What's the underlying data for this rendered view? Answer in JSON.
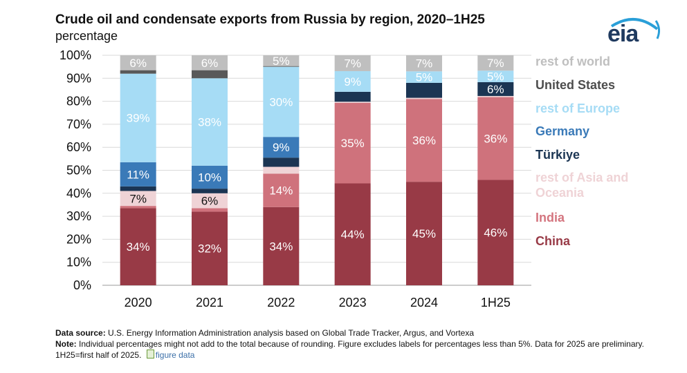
{
  "title": "Crude oil and condensate exports from Russia by region, 2020–1H25",
  "subtitle": "percentage",
  "logo": {
    "text": "eia",
    "icon": "eia-swoosh-icon"
  },
  "chart_data": {
    "type": "bar",
    "stacked": true,
    "title": "Crude oil and condensate exports from Russia by region, 2020–1H25",
    "ylabel": "percentage",
    "xlabel": "",
    "ylim": [
      0,
      100
    ],
    "yticks": [
      "0%",
      "10%",
      "20%",
      "30%",
      "40%",
      "50%",
      "60%",
      "70%",
      "80%",
      "90%",
      "100%"
    ],
    "grid": true,
    "legend_position": "right",
    "categories": [
      "2020",
      "2021",
      "2022",
      "2023",
      "2024",
      "1H25"
    ],
    "series": [
      {
        "name": "China",
        "color": "#983a46",
        "values": [
          33.5,
          32,
          34,
          44.3,
          45,
          45.8
        ],
        "labels": [
          "34%",
          "32%",
          "34%",
          "44%",
          "45%",
          "46%"
        ],
        "label_color": "#ffffff"
      },
      {
        "name": "India",
        "color": "#cf727c",
        "values": [
          1,
          1.5,
          14.5,
          35,
          36,
          36
        ],
        "labels": [
          "",
          "",
          "14%",
          "35%",
          "36%",
          "36%"
        ],
        "label_color": "#ffffff"
      },
      {
        "name": "rest of Asia and Oceania",
        "color": "#efd3d6",
        "values": [
          6.5,
          6.5,
          3,
          0.5,
          0.5,
          0.5
        ],
        "labels": [
          "7%",
          "6%",
          "",
          "",
          "",
          ""
        ],
        "label_color": "#111111"
      },
      {
        "name": "Türkiye",
        "color": "#1b3553",
        "values": [
          2,
          2,
          4,
          4.3,
          6.5,
          6
        ],
        "labels": [
          "",
          "",
          "",
          "",
          "",
          "6%"
        ],
        "label_color": "#ffffff"
      },
      {
        "name": "Germany",
        "color": "#3a7ab8",
        "values": [
          10.5,
          10,
          9,
          0,
          0,
          0
        ],
        "labels": [
          "11%",
          "10%",
          "9%",
          "",
          "",
          ""
        ],
        "label_color": "#ffffff"
      },
      {
        "name": "rest of Europe",
        "color": "#a6dcf5",
        "values": [
          38.5,
          38,
          30.5,
          9,
          5,
          5
        ],
        "labels": [
          "39%",
          "38%",
          "30%",
          "9%",
          "5%",
          "5%"
        ],
        "label_color": "#ffffff"
      },
      {
        "name": "United States",
        "color": "#595959",
        "values": [
          1.5,
          3.5,
          0.3,
          0,
          0,
          0
        ],
        "labels": [
          "",
          "",
          "",
          "",
          "",
          ""
        ],
        "label_color": "#ffffff"
      },
      {
        "name": "rest of world",
        "color": "#bfbfbf",
        "values": [
          6.5,
          6.5,
          4.7,
          6.9,
          7,
          6.7
        ],
        "labels": [
          "6%",
          "6%",
          "5%",
          "7%",
          "7%",
          "7%"
        ],
        "label_color": "#ffffff"
      }
    ],
    "legend_order": [
      "rest of world",
      "United States",
      "rest of Europe",
      "Germany",
      "Türkiye",
      "rest of Asia and Oceania",
      "India",
      "China"
    ],
    "legend_colors": {
      "rest of world": "#bfbfbf",
      "United States": "#4d4d4d",
      "rest of Europe": "#a6dcf5",
      "Germany": "#3a7ab8",
      "Türkiye": "#1b3553",
      "rest of Asia and Oceania": "#efd3d6",
      "India": "#d4757f",
      "China": "#983a46"
    }
  },
  "footer": {
    "source_label": "Data source:",
    "source_text": "U.S. Energy Information Administration analysis based on Global Trade Tracker, Argus, and Vortexa",
    "note_label": "Note:",
    "note_text": "Individual percentages might not add to the total because of rounding. Figure excludes labels for percentages less than 5%. Data for 2025 are preliminary. 1H25=first half of 2025.",
    "link_text": "figure data",
    "link_icon": "spreadsheet-icon"
  }
}
